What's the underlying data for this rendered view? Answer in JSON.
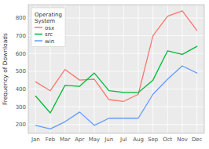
{
  "chart_data": {
    "type": "line",
    "categories": [
      "Jan",
      "Feb",
      "Mar",
      "Apr",
      "May",
      "Jun",
      "Jul",
      "Aug",
      "Sep",
      "Oct",
      "Nov",
      "Dec"
    ],
    "series": [
      {
        "name": "osx",
        "color": "#F8766D",
        "values": [
          440,
          390,
          510,
          450,
          455,
          340,
          330,
          370,
          700,
          810,
          840,
          730
        ]
      },
      {
        "name": "src",
        "color": "#00BA38",
        "values": [
          360,
          265,
          420,
          415,
          490,
          390,
          380,
          380,
          450,
          615,
          595,
          640
        ]
      },
      {
        "name": "win",
        "color": "#619CFF",
        "values": [
          195,
          175,
          215,
          270,
          195,
          235,
          235,
          235,
          370,
          455,
          530,
          490
        ]
      }
    ],
    "y_label": "Frequency of Downloads",
    "legend_title": "Operating\nSystem",
    "ylim": [
      150,
      875
    ],
    "yticks": [
      200,
      300,
      400,
      500,
      600,
      700,
      800
    ],
    "grid": true,
    "legend": "upper-left"
  }
}
